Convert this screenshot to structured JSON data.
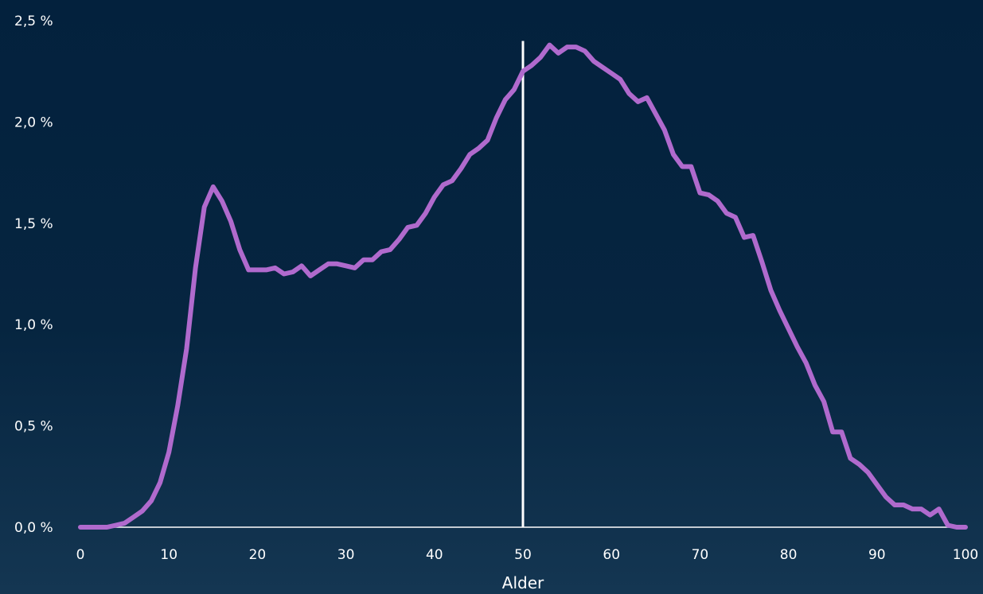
{
  "chart_data": {
    "type": "line",
    "title": "",
    "xlabel": "Alder",
    "ylabel": "",
    "xlim": [
      0,
      100
    ],
    "ylim": [
      0,
      2.5
    ],
    "x_ticks": [
      0,
      10,
      20,
      30,
      40,
      50,
      60,
      70,
      80,
      90,
      100
    ],
    "x_tick_labels": [
      "0",
      "10",
      "20",
      "30",
      "40",
      "50",
      "60",
      "70",
      "80",
      "90",
      "100"
    ],
    "y_ticks": [
      0,
      0.5,
      1.0,
      1.5,
      2.0,
      2.5
    ],
    "y_tick_labels": [
      "0,0 %",
      "0,5 %",
      "1,0 %",
      "1,5 %",
      "2,0 %",
      "2,5 %"
    ],
    "grid": false,
    "vertical_reference_line": {
      "x": 50,
      "y_top": 2.4
    },
    "colors": {
      "line": "#b06acd",
      "reference_line": "#ffffff",
      "axis": "#ffffff",
      "text": "#ffffff"
    },
    "series": [
      {
        "x": [
          0,
          1,
          2,
          3,
          4,
          5,
          6,
          7,
          8,
          9,
          10,
          11,
          12,
          13,
          14,
          15,
          16,
          17,
          18,
          19,
          20,
          21,
          22,
          23,
          24,
          25,
          26,
          27,
          28,
          29,
          30,
          31,
          32,
          33,
          34,
          35,
          36,
          37,
          38,
          39,
          40,
          41,
          42,
          43,
          44,
          45,
          46,
          47,
          48,
          49,
          50,
          51,
          52,
          53,
          54,
          55,
          56,
          57,
          58,
          59,
          60,
          61,
          62,
          63,
          64,
          65,
          66,
          67,
          68,
          69,
          70,
          71,
          72,
          73,
          74,
          75,
          76,
          77,
          78,
          79,
          80,
          81,
          82,
          83,
          84,
          85,
          86,
          87,
          88,
          89,
          90,
          91,
          92,
          93,
          94,
          95,
          96,
          97,
          98,
          99,
          100
        ],
        "values": [
          0.0,
          0.0,
          0.0,
          0.0,
          0.01,
          0.02,
          0.05,
          0.08,
          0.13,
          0.22,
          0.37,
          0.6,
          0.88,
          1.28,
          1.58,
          1.68,
          1.61,
          1.51,
          1.37,
          1.27,
          1.27,
          1.27,
          1.28,
          1.25,
          1.26,
          1.29,
          1.24,
          1.27,
          1.3,
          1.3,
          1.29,
          1.28,
          1.32,
          1.32,
          1.36,
          1.37,
          1.42,
          1.48,
          1.49,
          1.55,
          1.63,
          1.69,
          1.71,
          1.77,
          1.84,
          1.87,
          1.91,
          2.02,
          2.11,
          2.16,
          2.25,
          2.28,
          2.32,
          2.38,
          2.34,
          2.37,
          2.37,
          2.35,
          2.3,
          2.27,
          2.24,
          2.21,
          2.14,
          2.1,
          2.12,
          2.04,
          1.96,
          1.84,
          1.78,
          1.78,
          1.65,
          1.64,
          1.61,
          1.55,
          1.53,
          1.43,
          1.44,
          1.31,
          1.17,
          1.07,
          0.98,
          0.89,
          0.81,
          0.7,
          0.62,
          0.47,
          0.47,
          0.34,
          0.31,
          0.27,
          0.21,
          0.15,
          0.11,
          0.11,
          0.09,
          0.09,
          0.06,
          0.09,
          0.01,
          0.0,
          0.0
        ]
      }
    ]
  }
}
